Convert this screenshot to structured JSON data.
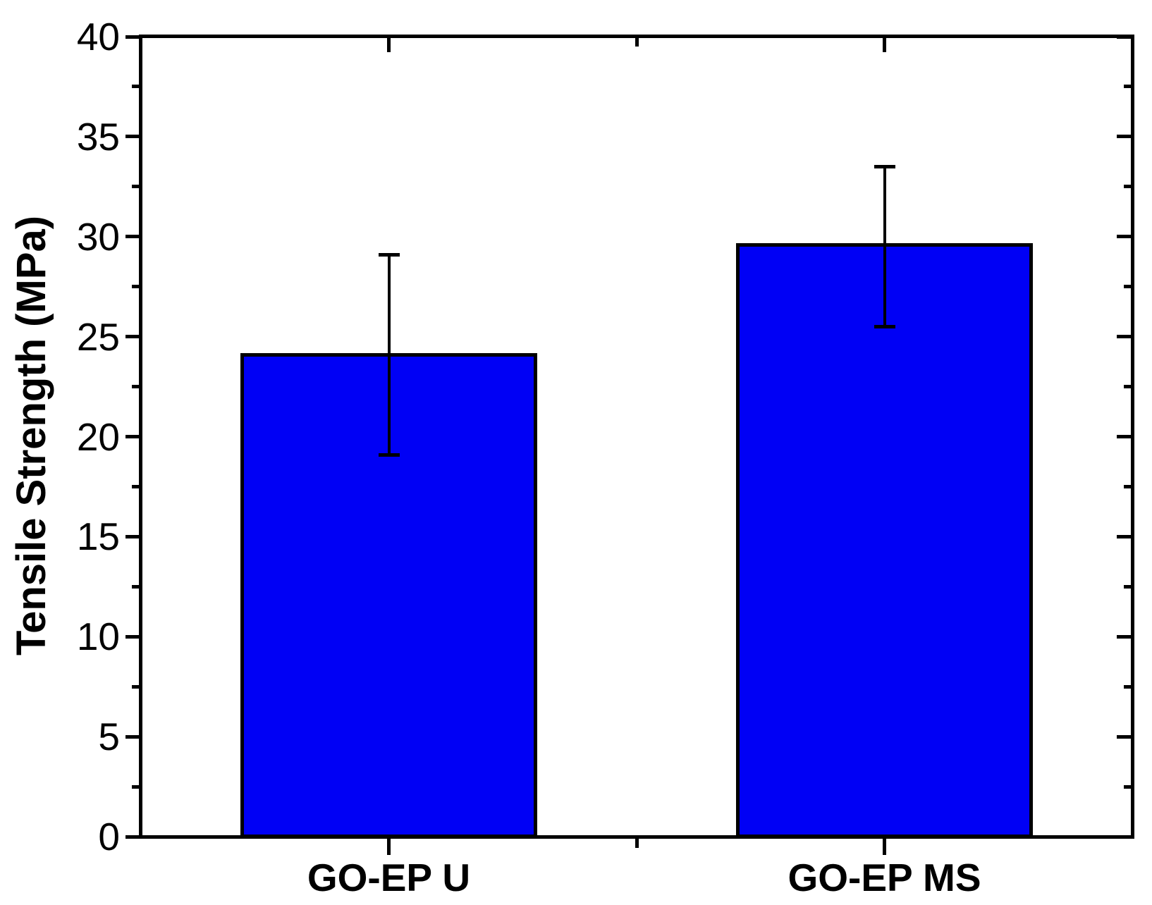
{
  "chart_data": {
    "type": "bar",
    "title": "",
    "xlabel": "",
    "ylabel": "Tensile Strength (MPa)",
    "categories": [
      "GO-EP U",
      "GO-EP MS"
    ],
    "values": [
      24.1,
      29.6
    ],
    "error_plus": [
      5.0,
      3.9
    ],
    "error_minus": [
      5.0,
      4.1
    ],
    "ylim": [
      0,
      40
    ],
    "y_major_step": 5,
    "y_minor_step": 2.5,
    "grid": false,
    "legend": "none",
    "bar_fill": "#0000F5",
    "bar_border": "#000000",
    "axis_color": "#000000",
    "background": "#FFFFFF"
  }
}
